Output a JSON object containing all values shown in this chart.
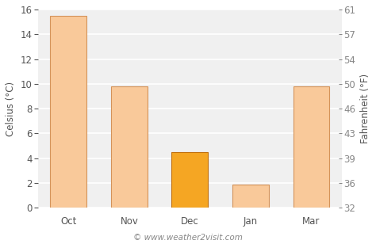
{
  "categories": [
    "Oct",
    "Nov",
    "Dec",
    "Jan",
    "Mar"
  ],
  "values": [
    15.5,
    9.8,
    4.5,
    1.9,
    9.8
  ],
  "bar_colors": [
    "#f9c99a",
    "#f9c99a",
    "#f5a623",
    "#f9c99a",
    "#f9c99a"
  ],
  "bar_edge_colors": [
    "#d4935a",
    "#d4935a",
    "#c07010",
    "#d4935a",
    "#d4935a"
  ],
  "ylabel_left": "Celsius (°C)",
  "ylabel_right": "Fahrenheit (°F)",
  "ylim_left": [
    0,
    16
  ],
  "yticks_left": [
    0,
    2,
    4,
    6,
    8,
    10,
    12,
    14,
    16
  ],
  "yticks_right_vals": [
    32,
    36,
    39,
    43,
    46,
    50,
    54,
    57,
    61
  ],
  "plot_bg_color": "#f0f0f0",
  "fig_bg_color": "#ffffff",
  "grid_color": "#ffffff",
  "footer_text": "© www.weather2visit.com",
  "axis_fontsize": 8.5,
  "tick_fontsize": 8.5,
  "tick_color": "#555555",
  "label_color": "#555555"
}
